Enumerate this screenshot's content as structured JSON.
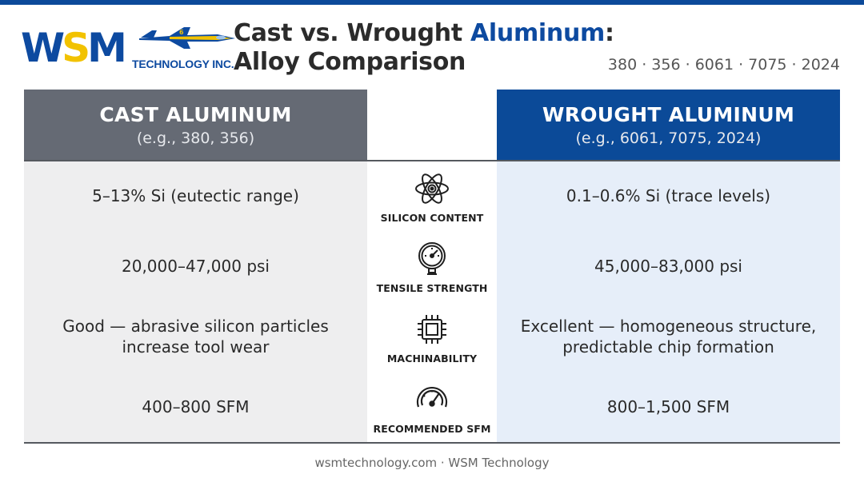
{
  "brand": {
    "logo_main": "WSM",
    "logo_sub": "TECHNOLOGY INC.",
    "primary_color": "#0d4aa0",
    "accent_color": "#f2c200"
  },
  "header": {
    "title_part1": "Cast vs. Wrought ",
    "title_accent": "Aluminum",
    "title_part2": ":",
    "title_line2": "Alloy Comparison",
    "alloys": "380 · 356 · 6061 · 7075 · 2024"
  },
  "table": {
    "cast_header": {
      "title": "CAST ALUMINUM",
      "subtitle": "(e.g., 380, 356)"
    },
    "wrought_header": {
      "title": "WROUGHT ALUMINUM",
      "subtitle": "(e.g., 6061, 7075, 2024)"
    },
    "rows": [
      {
        "label": "SILICON CONTENT",
        "icon": "atom-icon",
        "cast": "5–13% Si (eutectic range)",
        "wrought": "0.1–0.6% Si (trace levels)"
      },
      {
        "label": "TENSILE STRENGTH",
        "icon": "pressure-gauge-icon",
        "cast": "20,000–47,000 psi",
        "wrought": "45,000–83,000 psi"
      },
      {
        "label": "MACHINABILITY",
        "icon": "chip-icon",
        "cast": "Good — abrasive silicon particles increase tool wear",
        "wrought": "Excellent — homogeneous structure, predictable chip formation"
      },
      {
        "label": "RECOMMENDED SFM",
        "icon": "speedometer-icon",
        "cast": "400–800 SFM",
        "wrought": "800–1,500 SFM"
      }
    ]
  },
  "footer": {
    "text": "wsmtechnology.com · WSM Technology"
  }
}
